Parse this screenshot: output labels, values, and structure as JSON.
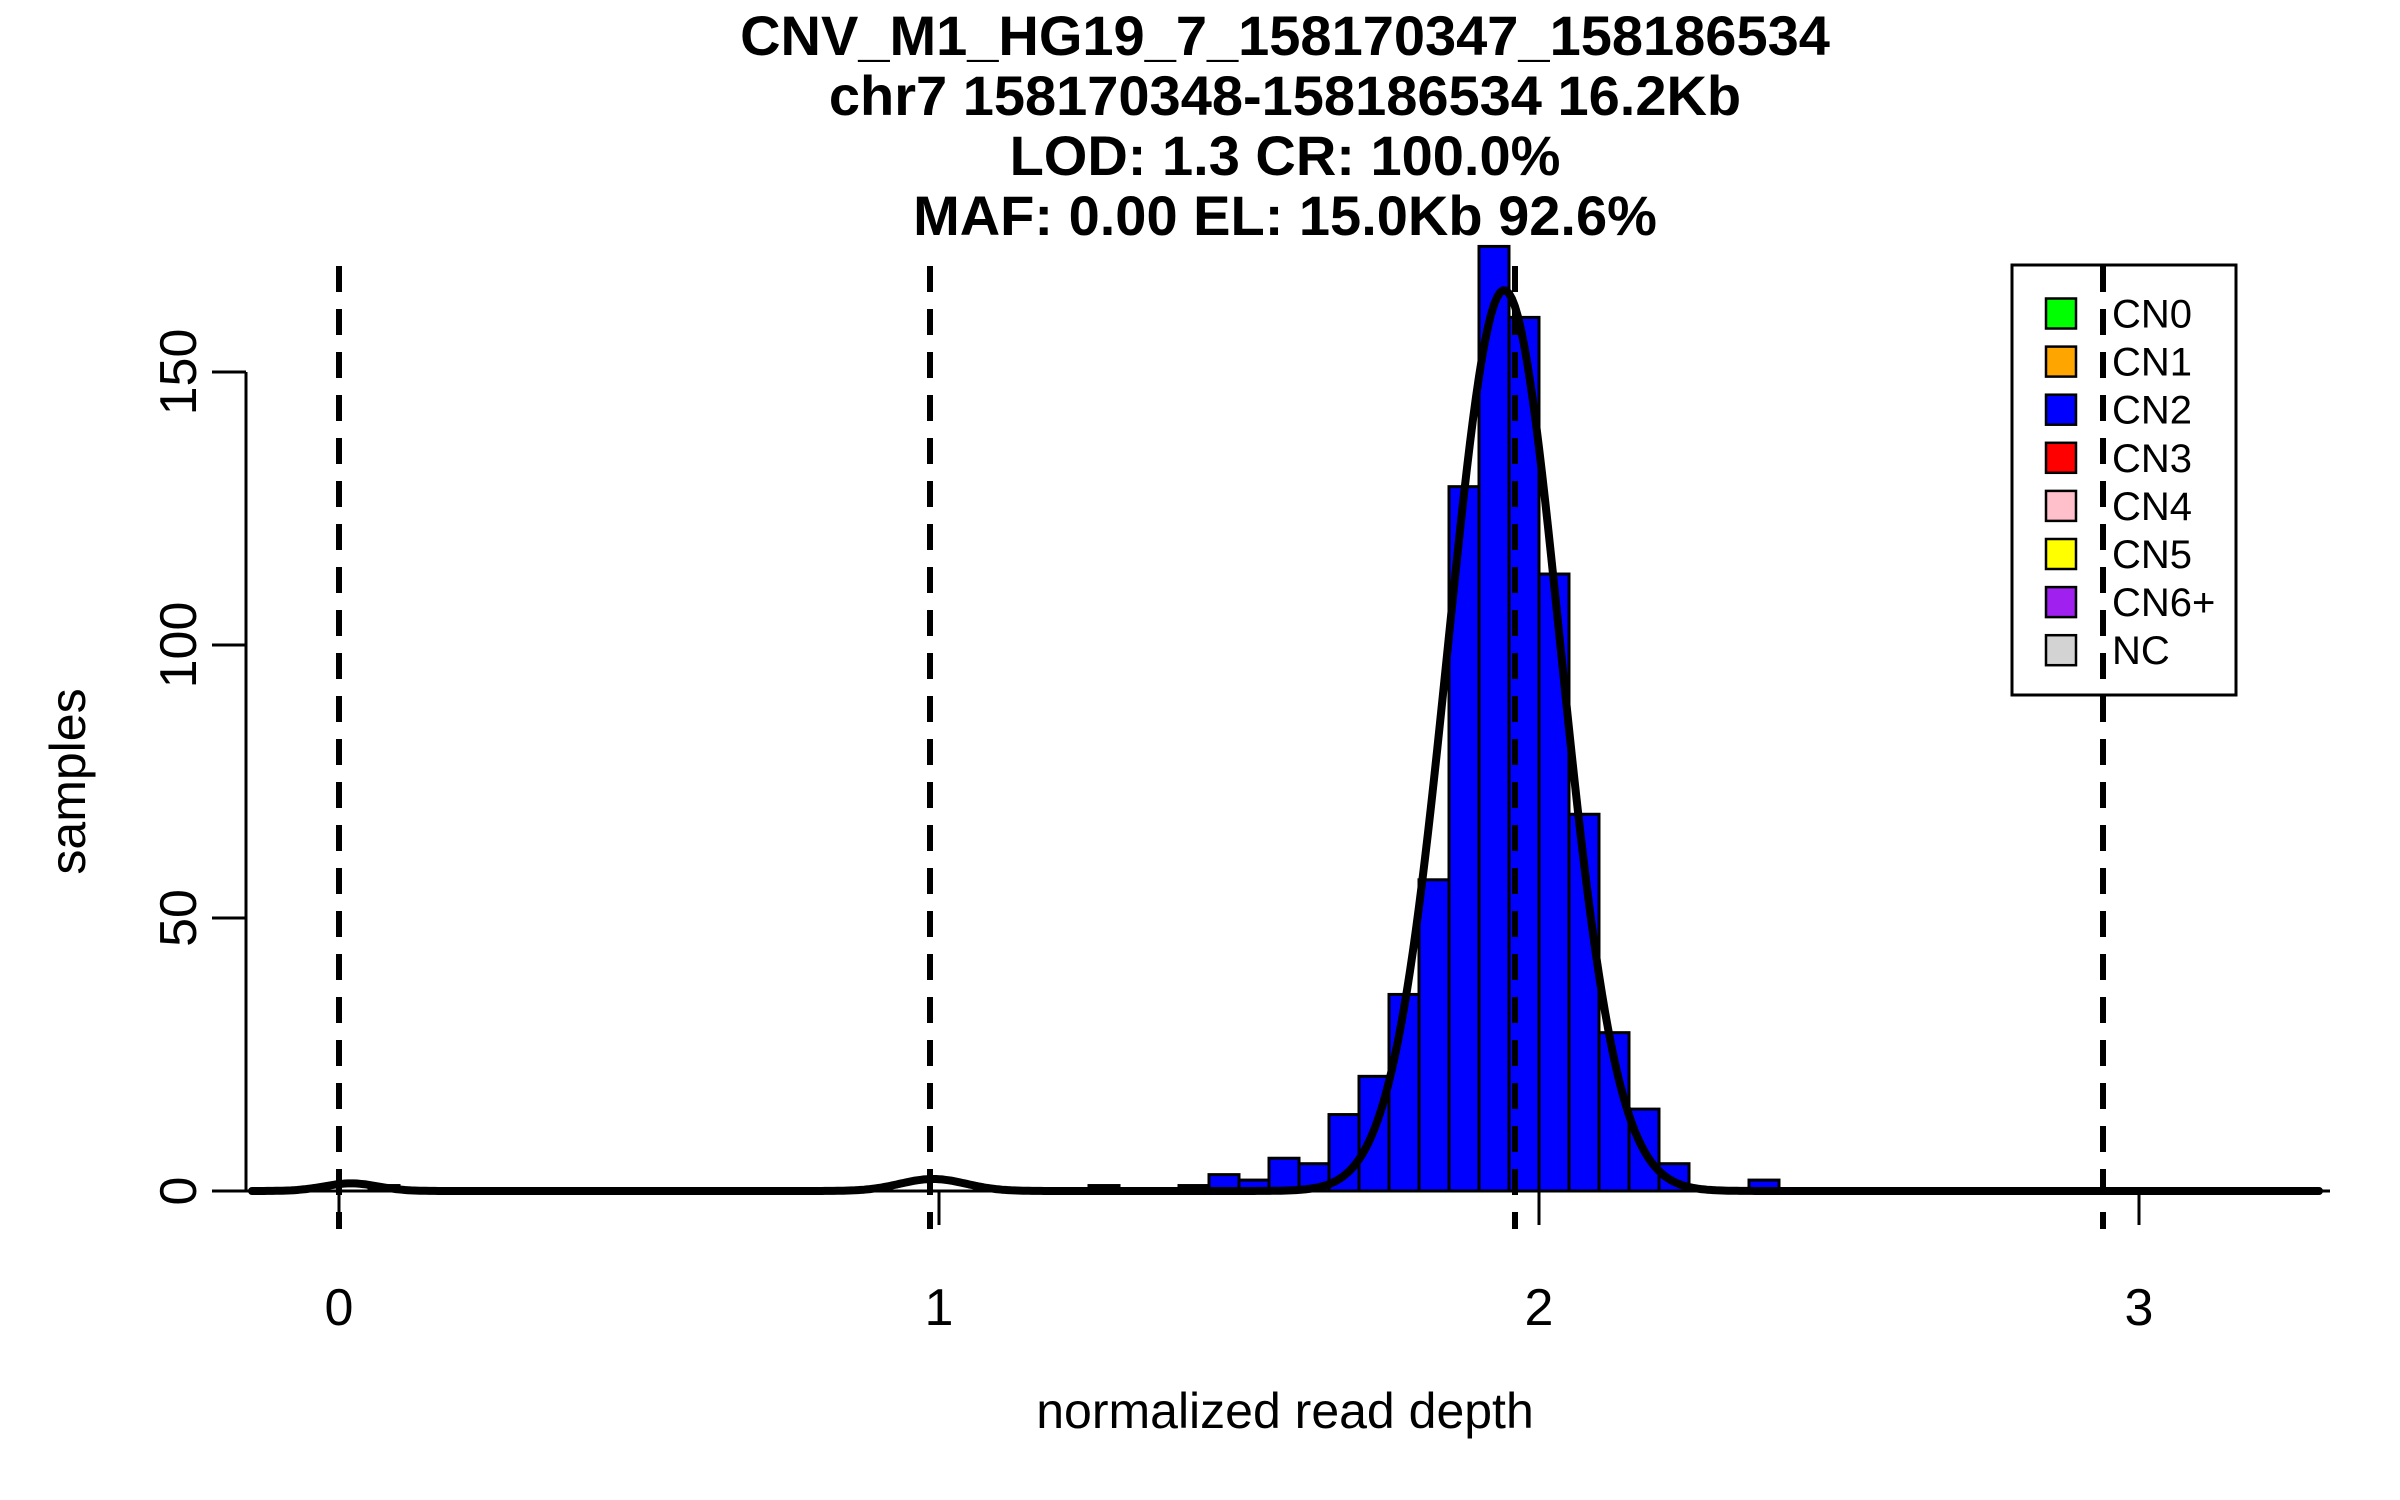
{
  "figure": {
    "title_lines": [
      "CNV_M1_HG19_7_158170347_158186534",
      "chr7 158170348-158186534 16.2Kb",
      "LOD: 1.3 CR: 100.0%",
      "MAF: 0.00 EL: 15.0Kb 92.6%"
    ],
    "xlabel": "normalized read depth",
    "ylabel": "samples"
  },
  "chart_data": {
    "type": "bar",
    "subtype": "histogram",
    "title": "CNV_M1_HG19_7_158170347_158186534 | chr7 158170348-158186534 16.2Kb | LOD: 1.3 CR: 100.0% | MAF: 0.00 EL: 15.0Kb 92.6%",
    "xlabel": "normalized read depth",
    "ylabel": "samples",
    "xlim": [
      -0.155,
      3.32
    ],
    "ylim": [
      0,
      175
    ],
    "x_ticks": [
      0,
      1,
      2,
      3
    ],
    "y_ticks": [
      0,
      50,
      100,
      150
    ],
    "grid": false,
    "bin_width": 0.05,
    "bar_color": "#0000FF",
    "bar_outline": "#000000",
    "bars": [
      {
        "bin_start": 0.05,
        "count": 1
      },
      {
        "bin_start": 1.25,
        "count": 1
      },
      {
        "bin_start": 1.4,
        "count": 1
      },
      {
        "bin_start": 1.45,
        "count": 3
      },
      {
        "bin_start": 1.5,
        "count": 2
      },
      {
        "bin_start": 1.55,
        "count": 6
      },
      {
        "bin_start": 1.6,
        "count": 5
      },
      {
        "bin_start": 1.65,
        "count": 14
      },
      {
        "bin_start": 1.7,
        "count": 21
      },
      {
        "bin_start": 1.75,
        "count": 36
      },
      {
        "bin_start": 1.8,
        "count": 57
      },
      {
        "bin_start": 1.85,
        "count": 129
      },
      {
        "bin_start": 1.9,
        "count": 173
      },
      {
        "bin_start": 1.95,
        "count": 160
      },
      {
        "bin_start": 2.0,
        "count": 113
      },
      {
        "bin_start": 2.05,
        "count": 69
      },
      {
        "bin_start": 2.1,
        "count": 29
      },
      {
        "bin_start": 2.15,
        "count": 15
      },
      {
        "bin_start": 2.2,
        "count": 5
      },
      {
        "bin_start": 2.35,
        "count": 2
      }
    ],
    "guide_lines_x": [
      0.0,
      0.985,
      1.96,
      2.94
    ],
    "fit_curve": {
      "color": "#000000",
      "components": [
        {
          "amplitude": 165,
          "mean": 1.942,
          "sd": 0.0935
        },
        {
          "amplitude": 2.2,
          "mean": 0.99,
          "sd": 0.055
        },
        {
          "amplitude": 1.4,
          "mean": 0.02,
          "sd": 0.045
        }
      ]
    },
    "legend_position": "top-right"
  },
  "legend": {
    "items": [
      {
        "label": "CN0",
        "color": "#00FF00"
      },
      {
        "label": "CN1",
        "color": "#FFA500"
      },
      {
        "label": "CN2",
        "color": "#0000FF"
      },
      {
        "label": "CN3",
        "color": "#FF0000"
      },
      {
        "label": "CN4",
        "color": "#FFC0CB"
      },
      {
        "label": "CN5",
        "color": "#FFFF00"
      },
      {
        "label": "CN6+",
        "color": "#A020F0"
      },
      {
        "label": "NC",
        "color": "#D3D3D3"
      }
    ]
  }
}
